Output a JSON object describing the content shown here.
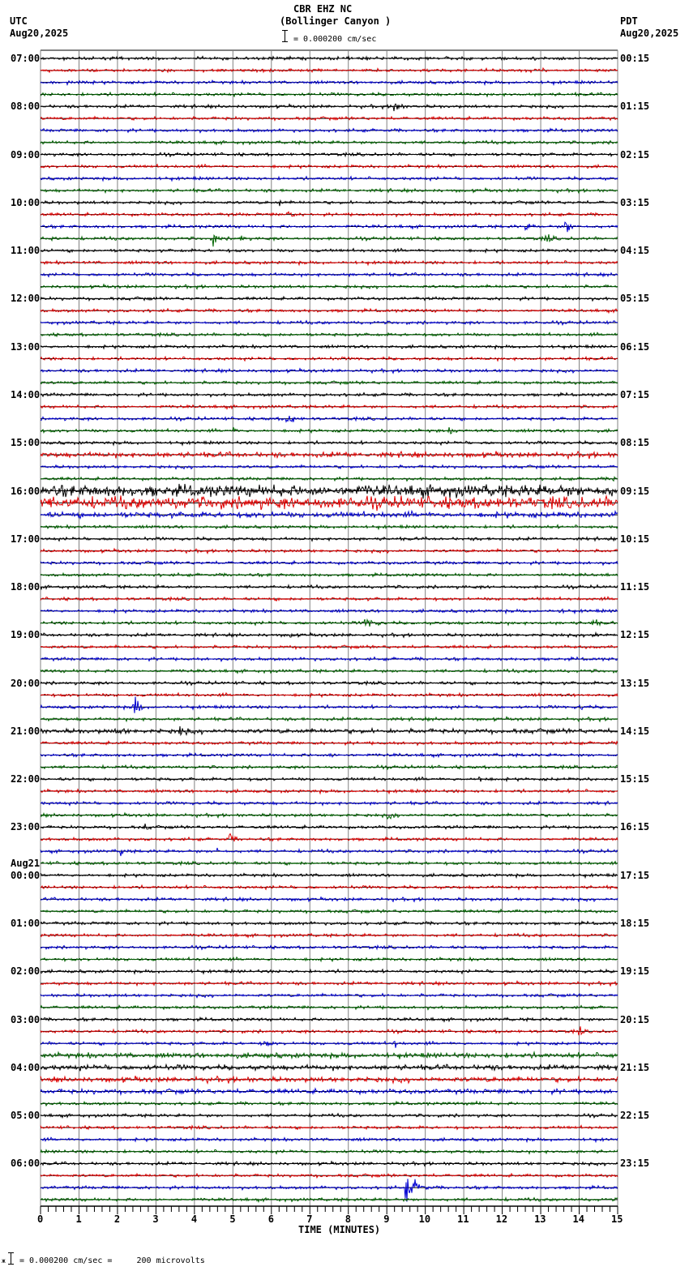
{
  "header": {
    "title_line1": "CBR EHZ NC",
    "title_line2": "(Bollinger Canyon )",
    "scale_text": "= 0.000200 cm/sec",
    "left_tz": "UTC",
    "left_date": "Aug20,2025",
    "right_tz": "PDT",
    "right_date": "Aug20,2025"
  },
  "footer": {
    "prefix": "ж",
    "scale_text": "= 0.000200 cm/sec =     200 microvolts"
  },
  "colors": {
    "trace_cycle": [
      "#000000",
      "#e00000",
      "#0000d0",
      "#006400"
    ],
    "grid": "#808080",
    "baseline": "#000000"
  },
  "chart_data": {
    "type": "line",
    "title": "CBR EHZ NC (Bollinger Canyon )",
    "subtitle": "Helicorder seismogram, 0.000200 cm/sec scale",
    "xlabel": "TIME (MINUTES)",
    "ylabel": "",
    "xlim": [
      0,
      15
    ],
    "x_ticks": [
      "0",
      "1",
      "2",
      "3",
      "4",
      "5",
      "6",
      "7",
      "8",
      "9",
      "10",
      "11",
      "12",
      "13",
      "14",
      "15"
    ],
    "minor_ticks_per_minute": 4,
    "grid": true,
    "traces_per_hour": 4,
    "minutes_per_trace": 15,
    "left_labels": [
      {
        "row": 0,
        "text": "07:00"
      },
      {
        "row": 4,
        "text": "08:00"
      },
      {
        "row": 8,
        "text": "09:00"
      },
      {
        "row": 12,
        "text": "10:00"
      },
      {
        "row": 16,
        "text": "11:00"
      },
      {
        "row": 20,
        "text": "12:00"
      },
      {
        "row": 24,
        "text": "13:00"
      },
      {
        "row": 28,
        "text": "14:00"
      },
      {
        "row": 32,
        "text": "15:00"
      },
      {
        "row": 36,
        "text": "16:00"
      },
      {
        "row": 40,
        "text": "17:00"
      },
      {
        "row": 44,
        "text": "18:00"
      },
      {
        "row": 48,
        "text": "19:00"
      },
      {
        "row": 52,
        "text": "20:00"
      },
      {
        "row": 56,
        "text": "21:00"
      },
      {
        "row": 60,
        "text": "22:00"
      },
      {
        "row": 64,
        "text": "23:00"
      },
      {
        "row": 68,
        "text": "00:00",
        "date": "Aug21"
      },
      {
        "row": 72,
        "text": "01:00"
      },
      {
        "row": 76,
        "text": "02:00"
      },
      {
        "row": 80,
        "text": "03:00"
      },
      {
        "row": 84,
        "text": "04:00"
      },
      {
        "row": 88,
        "text": "05:00"
      },
      {
        "row": 92,
        "text": "06:00"
      }
    ],
    "right_labels": [
      "00:15",
      "01:15",
      "02:15",
      "03:15",
      "04:15",
      "05:15",
      "06:15",
      "07:15",
      "08:15",
      "09:15",
      "10:15",
      "11:15",
      "12:15",
      "13:15",
      "14:15",
      "15:15",
      "16:15",
      "17:15",
      "18:15",
      "19:15",
      "20:15",
      "21:15",
      "22:15",
      "23:15"
    ],
    "noise_levels": {
      "default": 1.2,
      "rows": {
        "33": 2.0,
        "36": 4.5,
        "37": 4.5,
        "38": 2.2,
        "56": 1.8,
        "83": 2.0,
        "84": 2.0,
        "85": 2.0,
        "86": 1.8
      }
    },
    "events": [
      {
        "row": 4,
        "minute": 9.2,
        "amp": 8,
        "dur": 0.5
      },
      {
        "row": 12,
        "minute": 6.2,
        "amp": 9,
        "dur": 0.1
      },
      {
        "row": 13,
        "minute": 6.4,
        "amp": 5,
        "dur": 0.6
      },
      {
        "row": 14,
        "minute": 13.6,
        "amp": 8,
        "dur": 0.6
      },
      {
        "row": 14,
        "minute": 12.6,
        "amp": 4,
        "dur": 0.8
      },
      {
        "row": 15,
        "minute": 4.5,
        "amp": 10,
        "dur": 0.3
      },
      {
        "row": 15,
        "minute": 5.2,
        "amp": 5,
        "dur": 0.3
      },
      {
        "row": 15,
        "minute": 13.1,
        "amp": 5,
        "dur": 0.8
      },
      {
        "row": 15,
        "minute": 0.3,
        "amp": 3,
        "dur": 0.4
      },
      {
        "row": 30,
        "minute": 6.4,
        "amp": 5,
        "dur": 0.9
      },
      {
        "row": 31,
        "minute": 5.0,
        "amp": 3,
        "dur": 0.8
      },
      {
        "row": 31,
        "minute": 10.6,
        "amp": 3,
        "dur": 0.8
      },
      {
        "row": 35,
        "minute": 14.9,
        "amp": 6,
        "dur": 0.2
      },
      {
        "row": 37,
        "minute": 3.6,
        "amp": 9,
        "dur": 0.15
      },
      {
        "row": 39,
        "minute": 7.9,
        "amp": 6,
        "dur": 0.15
      },
      {
        "row": 46,
        "minute": 13.5,
        "amp": 3,
        "dur": 0.8
      },
      {
        "row": 47,
        "minute": 8.4,
        "amp": 6,
        "dur": 1.0
      },
      {
        "row": 47,
        "minute": 14.3,
        "amp": 4,
        "dur": 0.9
      },
      {
        "row": 48,
        "minute": 6.5,
        "amp": 3,
        "dur": 0.6
      },
      {
        "row": 48,
        "minute": 14.3,
        "amp": 4,
        "dur": 1.0
      },
      {
        "row": 54,
        "minute": 2.4,
        "amp": 16,
        "dur": 0.4
      },
      {
        "row": 54,
        "minute": 14.0,
        "amp": 3,
        "dur": 0.8
      },
      {
        "row": 56,
        "minute": 2.0,
        "amp": 5,
        "dur": 0.7
      },
      {
        "row": 56,
        "minute": 3.6,
        "amp": 5,
        "dur": 0.9
      },
      {
        "row": 58,
        "minute": 7.5,
        "amp": 3,
        "dur": 0.8
      },
      {
        "row": 60,
        "minute": 11.4,
        "amp": 4,
        "dur": 0.8
      },
      {
        "row": 63,
        "minute": 9.0,
        "amp": 4,
        "dur": 0.8
      },
      {
        "row": 64,
        "minute": 2.7,
        "amp": 4,
        "dur": 0.6
      },
      {
        "row": 65,
        "minute": 4.9,
        "amp": 6,
        "dur": 0.5
      },
      {
        "row": 66,
        "minute": 2.1,
        "amp": 6,
        "dur": 0.3
      },
      {
        "row": 66,
        "minute": 4.6,
        "amp": 5,
        "dur": 0.1
      },
      {
        "row": 81,
        "minute": 7.6,
        "amp": 4,
        "dur": 0.3
      },
      {
        "row": 81,
        "minute": 14.0,
        "amp": 5,
        "dur": 0.4
      },
      {
        "row": 82,
        "minute": 5.8,
        "amp": 5,
        "dur": 0.6
      },
      {
        "row": 82,
        "minute": 9.2,
        "amp": 4,
        "dur": 0.4
      },
      {
        "row": 84,
        "minute": 11.6,
        "amp": 4,
        "dur": 0.6
      },
      {
        "row": 87,
        "minute": 11.2,
        "amp": 3,
        "dur": 1.0
      },
      {
        "row": 94,
        "minute": 9.5,
        "amp": 12,
        "dur": 0.9
      }
    ]
  }
}
